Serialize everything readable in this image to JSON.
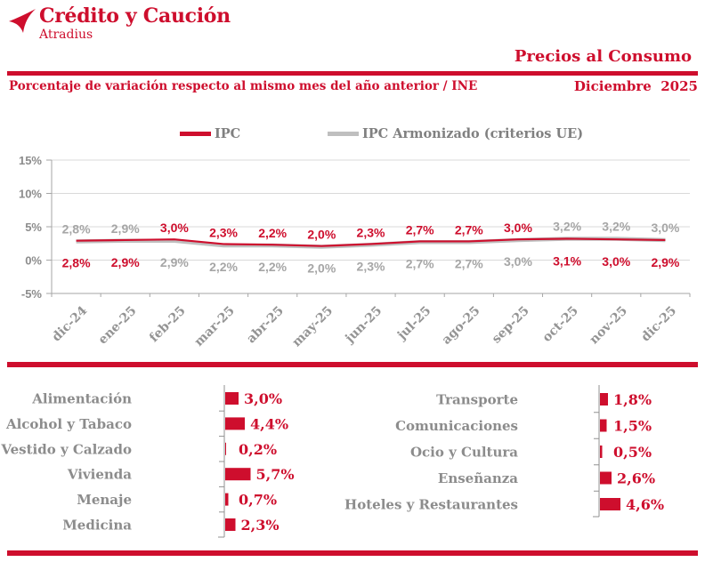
{
  "brand": {
    "name": "Crédito y Caución",
    "sub": "Atradius"
  },
  "header": {
    "title": "Precios al Consumo",
    "subtitle": "Porcentaje de variación respecto al mismo mes del año anterior / INE",
    "period": "Diciembre  2025"
  },
  "colors": {
    "red": "#CE0E2D",
    "gray_series": "#BFBFBF",
    "gray_data_label": "#A6A6A6",
    "gray_text": "#8C8C8C",
    "month_label": "#949494",
    "grid": "#D9D9D9",
    "axis": "#A6A6A6",
    "bar_axis": "#909090",
    "legend_text": "#808080"
  },
  "chart_data": [
    {
      "type": "line",
      "title": "IPC vs IPC Armonizado (variación interanual, %)",
      "categories": [
        "dic-24",
        "ene-25",
        "feb-25",
        "mar-25",
        "abr-25",
        "may-25",
        "jun-25",
        "jul-25",
        "ago-25",
        "sep-25",
        "oct-25",
        "nov-25",
        "dic-25"
      ],
      "series": [
        {
          "name": "IPC",
          "color": "#CE0E2D",
          "values": [
            2.8,
            2.9,
            3.0,
            2.3,
            2.2,
            2.0,
            2.3,
            2.7,
            2.7,
            3.0,
            3.1,
            3.0,
            2.9
          ],
          "labels": [
            "2,8%",
            "2,9%",
            "3,0%",
            "2,3%",
            "2,2%",
            "2,0%",
            "2,3%",
            "2,7%",
            "2,7%",
            "3,0%",
            "3,1%",
            "3,0%",
            "2,9%"
          ]
        },
        {
          "name": "IPC Armonizado (criterios UE)",
          "color": "#BFBFBF",
          "values": [
            2.8,
            2.9,
            2.9,
            2.2,
            2.2,
            2.0,
            2.3,
            2.7,
            2.7,
            3.0,
            3.2,
            3.2,
            3.0
          ],
          "labels": [
            "2,8%",
            "2,9%",
            "2,9%",
            "2,2%",
            "2,2%",
            "2,0%",
            "2,3%",
            "2,7%",
            "2,7%",
            "3,0%",
            "3,2%",
            "3,2%",
            "3,0%"
          ]
        }
      ],
      "top_label_series": [
        1,
        1,
        0,
        0,
        0,
        0,
        0,
        0,
        0,
        0,
        1,
        1,
        1
      ],
      "ylim": [
        -5,
        15
      ],
      "yticks": [
        {
          "v": 15,
          "label": "15%"
        },
        {
          "v": 10,
          "label": "10%"
        },
        {
          "v": 5,
          "label": "5%"
        },
        {
          "v": 0,
          "label": "0%"
        },
        {
          "v": -5,
          "label": "-5%"
        }
      ],
      "grid": true,
      "legend_position": "top"
    },
    {
      "type": "bar",
      "orientation": "horizontal",
      "unit": "%",
      "columns": [
        {
          "items": [
            {
              "label": "Alimentación",
              "value": 3.0,
              "text": "3,0%"
            },
            {
              "label": "Alcohol y Tabaco",
              "value": 4.4,
              "text": "4,4%"
            },
            {
              "label": "Vestido y Calzado",
              "value": 0.2,
              "text": "0,2%"
            },
            {
              "label": "Vivienda",
              "value": 5.7,
              "text": "5,7%"
            },
            {
              "label": "Menaje",
              "value": 0.7,
              "text": "0,7%"
            },
            {
              "label": "Medicina",
              "value": 2.3,
              "text": "2,3%"
            }
          ]
        },
        {
          "items": [
            {
              "label": "Transporte",
              "value": 1.8,
              "text": "1,8%"
            },
            {
              "label": "Comunicaciones",
              "value": 1.5,
              "text": "1,5%"
            },
            {
              "label": "Ocio y Cultura",
              "value": 0.5,
              "text": "0,5%"
            },
            {
              "label": "Enseñanza",
              "value": 2.6,
              "text": "2,6%"
            },
            {
              "label": "Hoteles y Restaurantes",
              "value": 4.6,
              "text": "4,6%"
            }
          ]
        }
      ]
    }
  ]
}
